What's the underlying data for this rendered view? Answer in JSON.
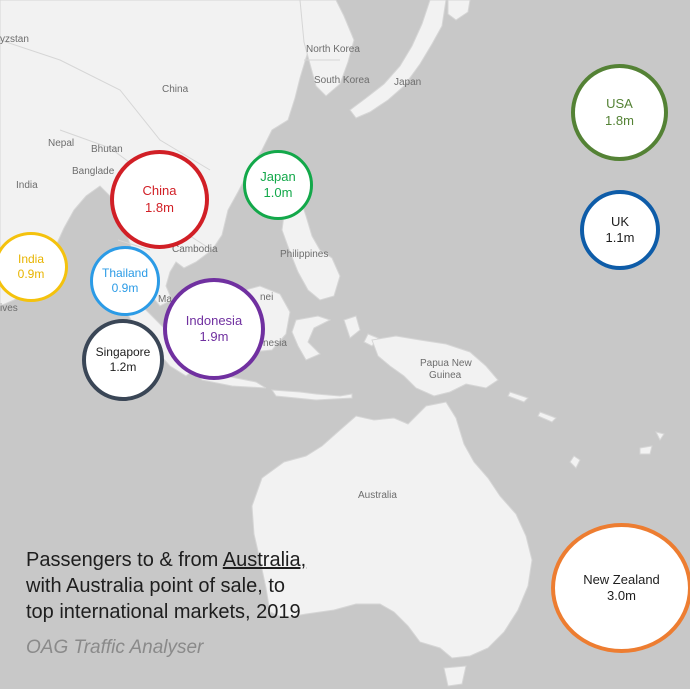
{
  "map_labels": {
    "kyrgyzstan": "yzstan",
    "china": "China",
    "north_korea": "North Korea",
    "south_korea": "South Korea",
    "japan": "Japan",
    "nepal": "Nepal",
    "bhutan": "Bhutan",
    "bangladesh": "Banglade",
    "india": "India",
    "cambodia": "Cambodia",
    "philippines": "Philippines",
    "maldives": "ives",
    "malaysia": "Ma",
    "brunei": "nei",
    "indonesia": "nesia",
    "papua_new_guinea_line1": "Papua New",
    "papua_new_guinea_line2": "Guinea",
    "australia": "Australia"
  },
  "markets": [
    {
      "id": "usa",
      "name": "USA",
      "value": "1.8m",
      "passengers_millions": 1.8,
      "color": "#548235"
    },
    {
      "id": "uk",
      "name": "UK",
      "value": "1.1m",
      "passengers_millions": 1.1,
      "color": "#0e5ca8"
    },
    {
      "id": "japan",
      "name": "Japan",
      "value": "1.0m",
      "passengers_millions": 1.0,
      "color": "#13a84a"
    },
    {
      "id": "china",
      "name": "China",
      "value": "1.8m",
      "passengers_millions": 1.8,
      "color": "#d11f26"
    },
    {
      "id": "india",
      "name": "India",
      "value": "0.9m",
      "passengers_millions": 0.9,
      "color": "#f4c20d"
    },
    {
      "id": "thailand",
      "name": "Thailand",
      "value": "0.9m",
      "passengers_millions": 0.9,
      "color": "#2b9be6"
    },
    {
      "id": "indonesia",
      "name": "Indonesia",
      "value": "1.9m",
      "passengers_millions": 1.9,
      "color": "#7030a0"
    },
    {
      "id": "singapore",
      "name": "Singapore",
      "value": "1.2m",
      "passengers_millions": 1.2,
      "color": "#3a4656"
    },
    {
      "id": "new_zealand",
      "name": "New Zealand",
      "value": "3.0m",
      "passengers_millions": 3.0,
      "color": "#ed7d31"
    }
  ],
  "caption": {
    "line1_before": "Passengers to & from ",
    "line1_link": "Australia,",
    "line2": "with Australia point of sale, to",
    "line3": "top international markets, 2019"
  },
  "source": "OAG Traffic Analyser",
  "colors": {
    "ocean": "#c8c8c8",
    "land": "#f2f2f2",
    "border": "#d6d6d6",
    "label": "#6d6d6d"
  }
}
